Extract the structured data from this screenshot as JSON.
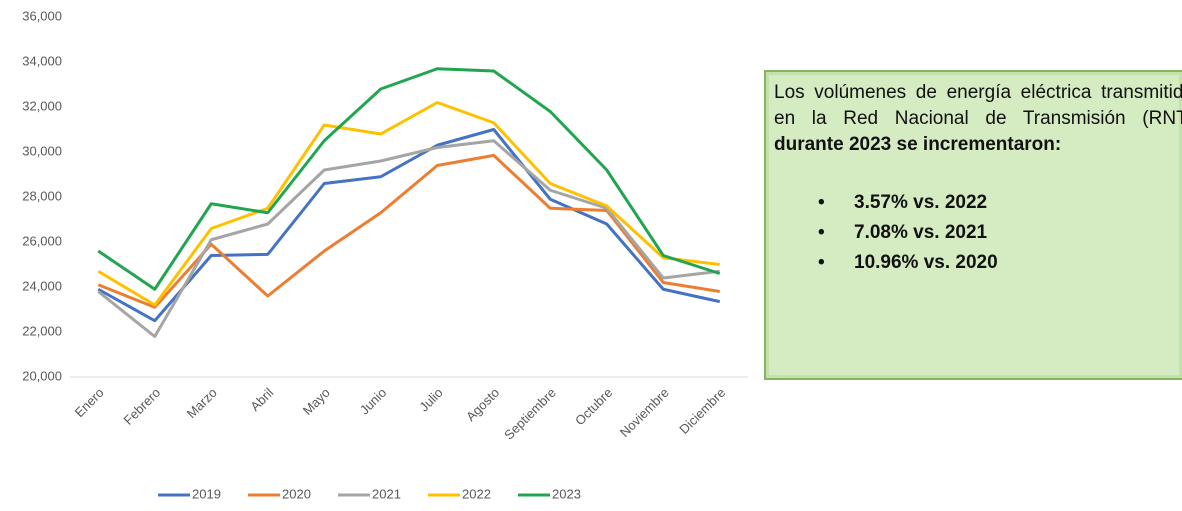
{
  "chart_data": {
    "type": "line",
    "categories": [
      "Enero",
      "Febrero",
      "Marzo",
      "Abril",
      "Mayo",
      "Junio",
      "Julio",
      "Agosto",
      "Septiembre",
      "Octubre",
      "Noviembre",
      "Diciembre"
    ],
    "series": [
      {
        "name": "2019",
        "color": "#4472c4",
        "values": [
          23900,
          22500,
          25400,
          25450,
          28600,
          28900,
          30300,
          31000,
          27900,
          26800,
          23900,
          23350
        ]
      },
      {
        "name": "2020",
        "color": "#ed7d31",
        "values": [
          24100,
          23100,
          25900,
          23600,
          25600,
          27300,
          29400,
          29850,
          27500,
          27400,
          24200,
          23800
        ]
      },
      {
        "name": "2021",
        "color": "#a5a5a5",
        "values": [
          23800,
          21800,
          26100,
          26800,
          29200,
          29600,
          30200,
          30500,
          28300,
          27500,
          24400,
          24700
        ]
      },
      {
        "name": "2022",
        "color": "#ffc000",
        "values": [
          24700,
          23200,
          26600,
          27500,
          31200,
          30800,
          32200,
          31300,
          28600,
          27600,
          25300,
          25000
        ]
      },
      {
        "name": "2023",
        "color": "#21a550",
        "values": [
          25600,
          23900,
          27700,
          27300,
          30500,
          32800,
          33700,
          33600,
          31800,
          29200,
          25400,
          24600
        ]
      }
    ],
    "ylim": [
      20000,
      36000
    ],
    "yticks": [
      {
        "value": 20000,
        "label": "20,000"
      },
      {
        "value": 22000,
        "label": "22,000"
      },
      {
        "value": 24000,
        "label": "24,000"
      },
      {
        "value": 26000,
        "label": "26,000"
      },
      {
        "value": 28000,
        "label": "28,000"
      },
      {
        "value": 30000,
        "label": "30,000"
      },
      {
        "value": 32000,
        "label": "32,000"
      },
      {
        "value": 34000,
        "label": "34,000"
      },
      {
        "value": 36000,
        "label": "36,000"
      }
    ],
    "legend": "bottom"
  },
  "text_box": {
    "intro": "Los volúmenes de energía eléctrica transmitida en la Red Nacional de Transmisión (RNT)",
    "intro_bold": "durante 2023 se incrementaron:",
    "bullets": [
      "3.57% vs. 2022",
      "7.08% vs. 2021",
      "10.96% vs. 2020"
    ]
  }
}
